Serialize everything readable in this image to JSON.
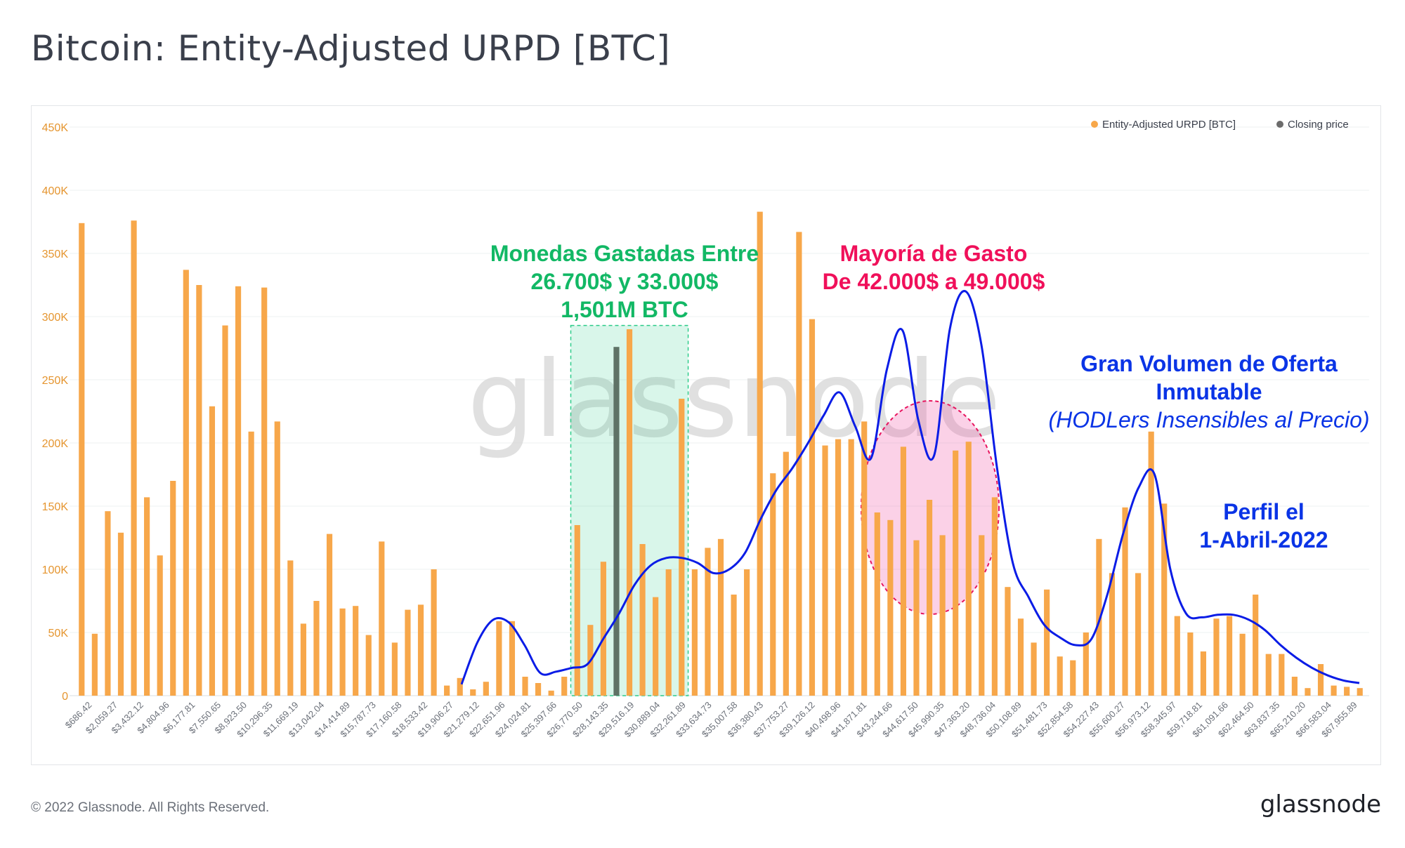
{
  "header": {
    "title": "Bitcoin: Entity-Adjusted URPD [BTC]"
  },
  "footer": {
    "copyright": "© 2022 Glassnode. All Rights Reserved.",
    "logo": "glassnode"
  },
  "watermark": "glassnode",
  "colors": {
    "bar": "#f7a74a",
    "highlight_bar": "#5f7266",
    "price_line": "#0a1ce6",
    "green_band": "#2ecc8a",
    "pink_zone": "#f05ba8",
    "green_text": "#12b865",
    "pink_text": "#f0105a",
    "blue_text": "#0a34e6"
  },
  "chart_data": {
    "type": "bar",
    "legend": {
      "position": "top-right",
      "items": [
        "Entity-Adjusted URPD [BTC]",
        "Closing price"
      ]
    },
    "ylim": [
      0,
      450000
    ],
    "yticks": [
      {
        "value": 0,
        "label": "0"
      },
      {
        "value": 50000,
        "label": "50K"
      },
      {
        "value": 100000,
        "label": "100K"
      },
      {
        "value": 150000,
        "label": "150K"
      },
      {
        "value": 200000,
        "label": "200K"
      },
      {
        "value": 250000,
        "label": "250K"
      },
      {
        "value": 300000,
        "label": "300K"
      },
      {
        "value": 350000,
        "label": "350K"
      },
      {
        "value": 400000,
        "label": "400K"
      },
      {
        "value": 450000,
        "label": "450K"
      }
    ],
    "tick_labels": [
      "$686.42",
      "$2,059.27",
      "$3,432.12",
      "$4,804.96",
      "$6,177.81",
      "$7,550.65",
      "$8,923.50",
      "$10,296.35",
      "$11,669.19",
      "$13,042.04",
      "$14,414.89",
      "$15,787.73",
      "$17,160.58",
      "$18,533.42",
      "$19,906.27",
      "$21,279.12",
      "$22,651.96",
      "$24,024.81",
      "$25,397.66",
      "$26,770.50",
      "$28,143.35",
      "$29,516.19",
      "$30,889.04",
      "$32,261.89",
      "$33,634.73",
      "$35,007.58",
      "$36,380.43",
      "$37,753.27",
      "$39,126.12",
      "$40,498.96",
      "$41,871.81",
      "$43,244.66",
      "$44,617.50",
      "$45,990.35",
      "$47,363.20",
      "$48,736.04",
      "$50,108.89",
      "$51,481.73",
      "$52,854.58",
      "$54,227.43",
      "$55,600.27",
      "$56,973.12",
      "$58,345.97",
      "$59,718.81",
      "$61,091.66",
      "$62,464.50",
      "$63,837.35",
      "$65,210.20",
      "$66,583.04",
      "$67,955.89"
    ],
    "series": [
      {
        "name": "Entity-Adjusted URPD [BTC]",
        "values": [
          374000,
          49000,
          146000,
          129000,
          376000,
          157000,
          111000,
          170000,
          337000,
          325000,
          229000,
          293000,
          324000,
          209000,
          323000,
          217000,
          107000,
          57000,
          75000,
          128000,
          69000,
          71000,
          48000,
          122000,
          42000,
          68000,
          72000,
          100000,
          8000,
          14000,
          5000,
          11000,
          59000,
          59000,
          15000,
          10000,
          4000,
          15000,
          135000,
          56000,
          106000,
          276000,
          290000,
          120000,
          78000,
          100000,
          235000,
          100000,
          117000,
          124000,
          80000,
          100000,
          383000,
          176000,
          193000,
          367000,
          298000,
          198000,
          203000,
          203000,
          217000,
          145000,
          139000,
          197000,
          123000,
          155000,
          127000,
          194000,
          201000,
          127000,
          157000,
          86000,
          61000,
          42000,
          84000,
          31000,
          28000,
          50000,
          124000,
          97000,
          149000,
          97000,
          209000,
          152000,
          63000,
          50000,
          35000,
          61000,
          63000,
          49000,
          80000,
          33000,
          33000,
          15000,
          6000,
          25000,
          8000,
          7000,
          6000
        ]
      },
      {
        "name": "Closing price",
        "values": [
          9000,
          42000,
          60000,
          58000,
          40000,
          18000,
          19000,
          22000,
          25000,
          45000,
          65000,
          88000,
          103000,
          109000,
          109000,
          105000,
          97000,
          100000,
          113000,
          140000,
          163000,
          180000,
          200000,
          222000,
          240000,
          213000,
          188000,
          258000,
          289000,
          218000,
          190000,
          290000,
          320000,
          278000,
          180000,
          105000,
          78000,
          56000,
          46000,
          40000,
          45000,
          80000,
          128000,
          165000,
          175000,
          100000,
          65000,
          62000,
          64000,
          64000,
          60000,
          52000,
          40000,
          30000,
          22000,
          16000,
          12000,
          10000
        ]
      }
    ],
    "highlight_index": 41,
    "annotations": {
      "green": [
        "Monedas Gastadas Entre",
        "26.700$ y 33.000$",
        "1,501M BTC"
      ],
      "pink": [
        "Mayoría de Gasto",
        "De 42.000$ a 49.000$"
      ],
      "hodl": [
        "Gran Volumen de Oferta",
        "Inmutable",
        "(HODLers Insensibles al Precio)"
      ],
      "profile": [
        "Perfil el",
        "1-Abril-2022"
      ]
    }
  }
}
